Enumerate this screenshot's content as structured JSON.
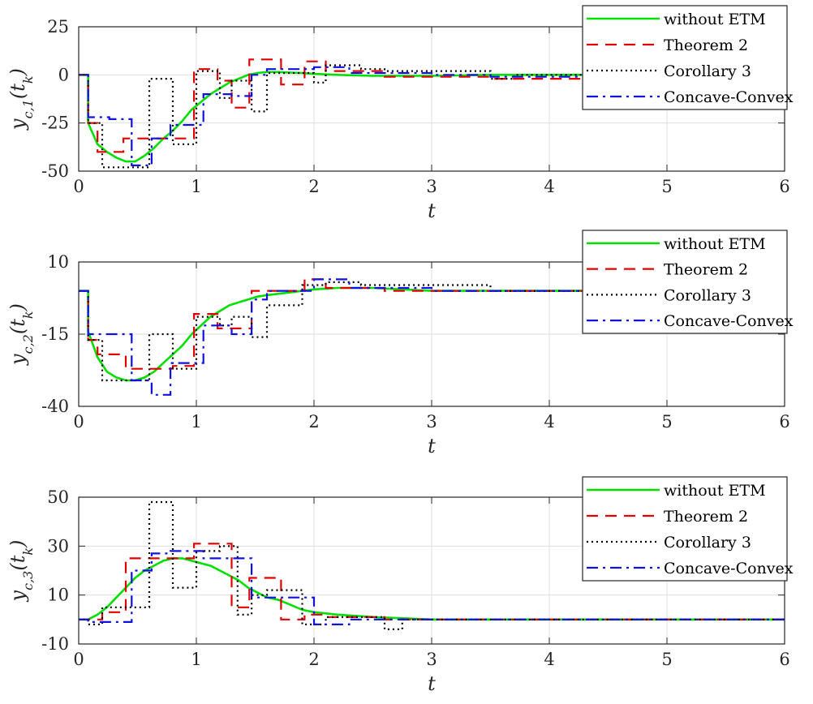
{
  "chart_data": [
    {
      "type": "line",
      "xlabel": "t",
      "ylabel": "y_{c,1}(t_k)",
      "xlim": [
        0,
        6
      ],
      "ylim": [
        -50,
        25
      ],
      "xticks": [
        "0",
        "1",
        "2",
        "3",
        "4",
        "5",
        "6"
      ],
      "yticks": [
        "-50",
        "-25",
        "0",
        "25"
      ],
      "grid": true,
      "legend_position": "top-right",
      "series": [
        {
          "name": "without ETM",
          "color": "#00e000",
          "dash": "solid",
          "x": [
            0,
            0.08,
            0.08,
            0.16,
            0.24,
            0.32,
            0.4,
            0.48,
            0.56,
            0.64,
            0.72,
            0.8,
            0.88,
            0.96,
            1.04,
            1.12,
            1.2,
            1.28,
            1.36,
            1.44,
            1.52,
            1.6,
            1.7,
            1.8,
            1.9,
            2.0,
            2.2,
            2.5,
            3.0,
            3.5,
            4.0,
            6.0
          ],
          "y": [
            0,
            0,
            -25,
            -36,
            -40,
            -43,
            -45,
            -45,
            -42,
            -38,
            -33,
            -29,
            -24,
            -18,
            -14,
            -10,
            -7,
            -4,
            -2,
            0,
            1,
            1.5,
            1.5,
            1.2,
            1,
            0.5,
            0,
            -0.5,
            -0.5,
            0,
            0,
            0
          ]
        },
        {
          "name": "Theorem 2",
          "color": "#e00000",
          "dash": "14,9",
          "x": [
            0,
            0.08,
            0.08,
            0.16,
            0.16,
            0.38,
            0.38,
            0.75,
            0.75,
            0.98,
            0.98,
            1.18,
            1.18,
            1.3,
            1.3,
            1.45,
            1.45,
            1.72,
            1.72,
            1.92,
            1.92,
            2.1,
            2.1,
            2.6,
            2.6,
            3.5,
            3.5,
            4.3,
            4.3,
            6.0
          ],
          "y": [
            0,
            0,
            -25,
            -25,
            -40,
            -40,
            -33,
            -33,
            -33,
            -33,
            3,
            3,
            -3,
            -3,
            -17,
            -17,
            8,
            8,
            -5,
            -5,
            7,
            7,
            2,
            2,
            -1,
            -1,
            -2,
            -2,
            0,
            0
          ]
        },
        {
          "name": "Corollary 3",
          "color": "#000000",
          "dash": "2,4",
          "x": [
            0,
            0.08,
            0.08,
            0.2,
            0.2,
            0.6,
            0.6,
            0.8,
            0.8,
            1.0,
            1.0,
            1.2,
            1.2,
            1.3,
            1.3,
            1.47,
            1.47,
            1.6,
            1.6,
            2.0,
            2.0,
            2.1,
            2.1,
            2.4,
            2.4,
            2.6,
            2.6,
            3.5,
            3.5,
            3.7,
            3.7,
            4.0,
            4.0,
            6.0
          ],
          "y": [
            0,
            0,
            -25,
            -25,
            -48,
            -48,
            -2,
            -2,
            -36,
            -36,
            2,
            2,
            -12,
            -12,
            -3,
            -3,
            -19,
            -19,
            1,
            1,
            -4,
            -4,
            5,
            5,
            3,
            3,
            2,
            2,
            -2,
            -2,
            0,
            0,
            0,
            0
          ]
        },
        {
          "name": "Concave-Convex",
          "color": "#1010e0",
          "dash": "14,6,3,6",
          "x": [
            0,
            0.08,
            0.08,
            0.26,
            0.26,
            0.45,
            0.45,
            0.62,
            0.62,
            0.78,
            0.78,
            1.06,
            1.06,
            1.3,
            1.3,
            1.47,
            1.47,
            1.6,
            1.6,
            2.0,
            2.0,
            2.3,
            2.3,
            3.0,
            3.0,
            3.5,
            3.5,
            6.0
          ],
          "y": [
            0,
            0,
            -22,
            -22,
            -23,
            -23,
            -47,
            -47,
            -33,
            -33,
            -26,
            -26,
            -10,
            -10,
            -11,
            -11,
            0,
            0,
            3,
            3,
            4,
            4,
            1,
            1,
            0,
            0,
            -1,
            -1
          ]
        }
      ]
    },
    {
      "type": "line",
      "xlabel": "t",
      "ylabel": "y_{c,2}(t_k)",
      "xlim": [
        0,
        6
      ],
      "ylim": [
        -40,
        10
      ],
      "xticks": [
        "0",
        "1",
        "2",
        "3",
        "4",
        "5",
        "6"
      ],
      "yticks": [
        "-40",
        "-15",
        "10"
      ],
      "grid": true,
      "legend_position": "top-right",
      "series": [
        {
          "name": "without ETM",
          "color": "#00e000",
          "dash": "solid",
          "x": [
            0,
            0.08,
            0.08,
            0.16,
            0.24,
            0.32,
            0.4,
            0.48,
            0.56,
            0.64,
            0.72,
            0.8,
            0.88,
            0.96,
            1.04,
            1.12,
            1.2,
            1.28,
            1.36,
            1.44,
            1.52,
            1.6,
            1.7,
            1.8,
            1.9,
            2.0,
            2.2,
            2.5,
            3.0,
            6.0
          ],
          "y": [
            0,
            0,
            -14,
            -23,
            -28,
            -30,
            -31,
            -31,
            -30,
            -28,
            -25,
            -22,
            -19,
            -15,
            -12,
            -9,
            -7,
            -5,
            -4,
            -3,
            -2,
            -1.5,
            -1,
            -0.5,
            0,
            0.5,
            1,
            1,
            0,
            0
          ]
        },
        {
          "name": "Theorem 2",
          "color": "#e00000",
          "dash": "14,9",
          "x": [
            0,
            0.08,
            0.08,
            0.16,
            0.16,
            0.4,
            0.4,
            0.8,
            0.8,
            0.98,
            0.98,
            1.18,
            1.18,
            1.47,
            1.47,
            1.92,
            1.92,
            2.1,
            2.1,
            2.6,
            2.6,
            3.5,
            3.5,
            6.0
          ],
          "y": [
            0,
            0,
            -17,
            -17,
            -22,
            -22,
            -27,
            -27,
            -26,
            -26,
            -8,
            -8,
            -13,
            -13,
            0,
            0,
            4,
            4,
            1,
            1,
            0,
            0,
            0,
            0
          ]
        },
        {
          "name": "Corollary 3",
          "color": "#000000",
          "dash": "2,4",
          "x": [
            0,
            0.08,
            0.08,
            0.2,
            0.2,
            0.6,
            0.6,
            0.8,
            0.8,
            1.0,
            1.0,
            1.2,
            1.2,
            1.3,
            1.3,
            1.47,
            1.47,
            1.6,
            1.6,
            1.9,
            1.9,
            2.1,
            2.1,
            2.4,
            2.4,
            3.5,
            3.5,
            6.0
          ],
          "y": [
            0,
            0,
            -17,
            -17,
            -31,
            -31,
            -15,
            -15,
            -27,
            -27,
            -9,
            -9,
            -12,
            -12,
            -9,
            -9,
            -16,
            -16,
            -5,
            -5,
            2,
            2,
            3,
            3,
            2,
            2,
            0,
            0
          ]
        },
        {
          "name": "Concave-Convex",
          "color": "#1010e0",
          "dash": "14,6,3,6",
          "x": [
            0,
            0.08,
            0.08,
            0.26,
            0.26,
            0.45,
            0.45,
            0.62,
            0.62,
            0.78,
            0.78,
            1.06,
            1.06,
            1.3,
            1.3,
            1.47,
            1.47,
            1.6,
            1.6,
            2.0,
            2.0,
            2.3,
            2.3,
            3.0,
            3.0,
            6.0
          ],
          "y": [
            0,
            0,
            -15,
            -15,
            -15,
            -15,
            -31,
            -31,
            -36,
            -36,
            -25,
            -25,
            -12,
            -12,
            -15,
            -15,
            -3,
            -3,
            0,
            0,
            4,
            4,
            1,
            1,
            0,
            0
          ]
        }
      ]
    },
    {
      "type": "line",
      "xlabel": "t",
      "ylabel": "y_{c,3}(t_k)",
      "xlim": [
        0,
        6
      ],
      "ylim": [
        -10,
        50
      ],
      "xticks": [
        "0",
        "1",
        "2",
        "3",
        "4",
        "5",
        "6"
      ],
      "yticks": [
        "-10",
        "10",
        "30",
        "50"
      ],
      "grid": true,
      "legend_position": "top-right",
      "series": [
        {
          "name": "without ETM",
          "color": "#00e000",
          "dash": "solid",
          "x": [
            0,
            0.08,
            0.16,
            0.24,
            0.32,
            0.4,
            0.48,
            0.56,
            0.64,
            0.72,
            0.8,
            0.88,
            0.96,
            1.04,
            1.12,
            1.2,
            1.28,
            1.36,
            1.44,
            1.52,
            1.6,
            1.7,
            1.8,
            1.9,
            2.0,
            2.2,
            2.5,
            3.0,
            4.0,
            6.0
          ],
          "y": [
            0,
            0,
            2,
            5,
            9,
            13,
            17,
            20,
            22,
            24,
            25,
            25,
            24,
            23,
            22,
            20,
            18,
            16,
            13,
            11,
            9,
            8,
            6,
            4,
            3,
            2,
            1,
            0,
            0,
            0
          ]
        },
        {
          "name": "Theorem 2",
          "color": "#e00000",
          "dash": "14,9",
          "x": [
            0,
            0.2,
            0.2,
            0.4,
            0.4,
            0.75,
            0.75,
            0.98,
            0.98,
            1.18,
            1.18,
            1.3,
            1.3,
            1.45,
            1.45,
            1.72,
            1.72,
            1.92,
            1.92,
            2.1,
            2.1,
            2.6,
            2.6,
            3.5,
            3.5,
            6.0
          ],
          "y": [
            0,
            0,
            3,
            3,
            25,
            25,
            25,
            25,
            31,
            31,
            31,
            31,
            5,
            5,
            17,
            17,
            0,
            0,
            2,
            2,
            1,
            1,
            0,
            0,
            0,
            0
          ]
        },
        {
          "name": "Corollary 3",
          "color": "#000000",
          "dash": "2,4",
          "x": [
            0,
            0.08,
            0.08,
            0.2,
            0.2,
            0.4,
            0.4,
            0.6,
            0.6,
            0.8,
            0.8,
            1.0,
            1.0,
            1.2,
            1.2,
            1.35,
            1.35,
            1.47,
            1.47,
            1.6,
            1.6,
            1.9,
            1.9,
            2.1,
            2.1,
            2.6,
            2.6,
            2.75,
            2.75,
            3.5,
            3.5,
            6.0
          ],
          "y": [
            0,
            0,
            -2,
            -2,
            5,
            5,
            5,
            5,
            48,
            48,
            13,
            13,
            28,
            28,
            30,
            30,
            2,
            2,
            10,
            10,
            12,
            12,
            -2,
            -2,
            1,
            1,
            -4,
            -4,
            0,
            0,
            0,
            0
          ]
        },
        {
          "name": "Concave-Convex",
          "color": "#1010e0",
          "dash": "14,6,3,6",
          "x": [
            0,
            0.08,
            0.08,
            0.45,
            0.45,
            0.62,
            0.62,
            0.78,
            0.78,
            1.06,
            1.06,
            1.47,
            1.47,
            1.6,
            1.6,
            2.0,
            2.0,
            2.3,
            2.3,
            3.0,
            3.0,
            6.0
          ],
          "y": [
            0,
            0,
            -1,
            -1,
            20,
            20,
            27,
            27,
            28,
            28,
            25,
            25,
            9,
            9,
            9,
            9,
            -2,
            -2,
            0,
            0,
            0,
            0
          ]
        }
      ]
    }
  ]
}
